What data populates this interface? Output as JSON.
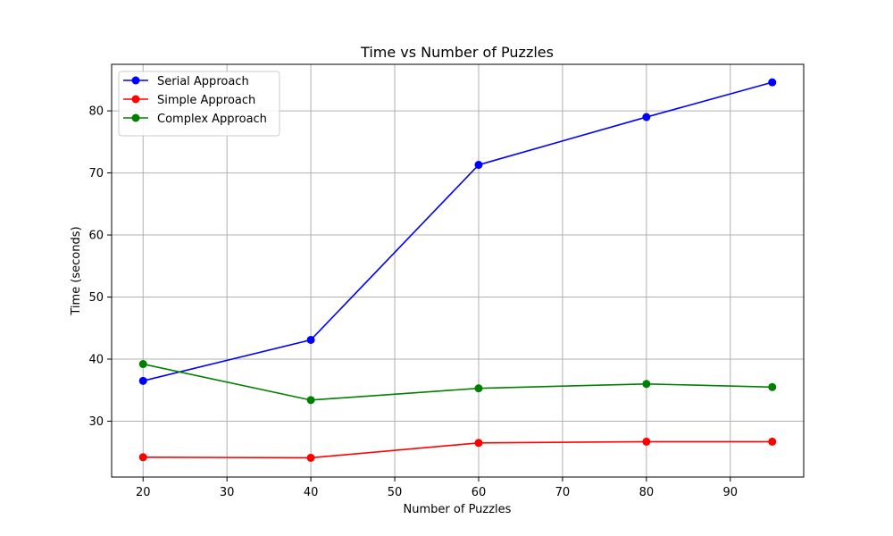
{
  "chart_data": {
    "type": "line",
    "title": "Time vs Number of Puzzles",
    "xlabel": "Number of Puzzles",
    "ylabel": "Time (seconds)",
    "x": [
      20,
      40,
      60,
      80,
      95
    ],
    "xlim": [
      16.25,
      98.75
    ],
    "ylim": [
      21.0,
      87.5
    ],
    "xticks": [
      20,
      30,
      40,
      50,
      60,
      70,
      80,
      90
    ],
    "yticks": [
      30,
      40,
      50,
      60,
      70,
      80
    ],
    "grid": true,
    "legend_position": "top-left",
    "series": [
      {
        "name": "Serial Approach",
        "color": "#0000ff",
        "marker": "circle",
        "values": [
          36.5,
          43.1,
          71.3,
          79.0,
          84.6
        ]
      },
      {
        "name": "Simple Approach",
        "color": "#ff0000",
        "marker": "circle",
        "values": [
          24.2,
          24.1,
          26.5,
          26.7,
          26.7
        ]
      },
      {
        "name": "Complex Approach",
        "color": "#008000",
        "marker": "circle",
        "values": [
          39.2,
          33.4,
          35.3,
          36.0,
          35.5
        ]
      }
    ]
  }
}
